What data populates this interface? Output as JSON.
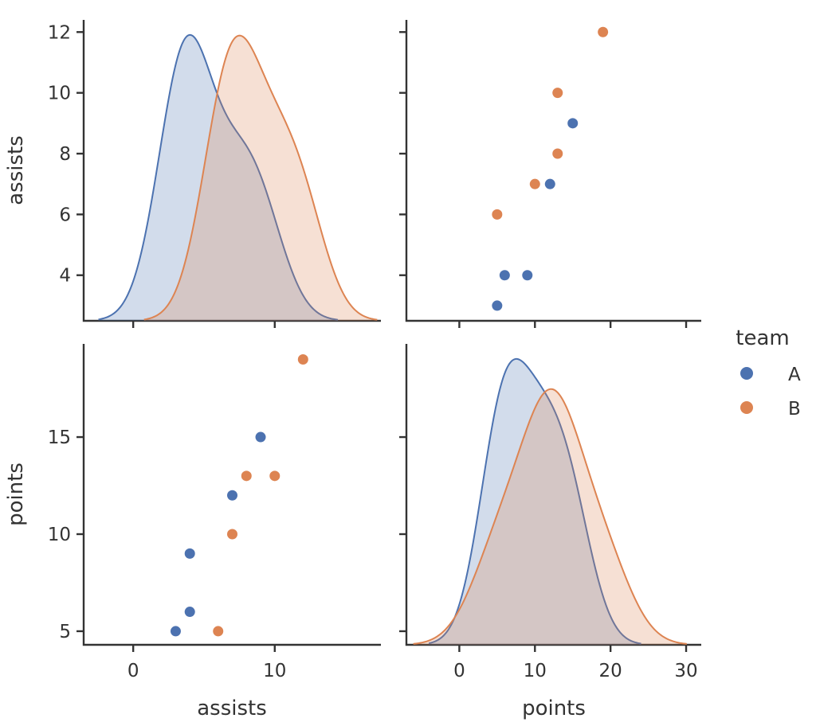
{
  "chart_data": {
    "type": "pairplot",
    "variables": [
      "assists",
      "points"
    ],
    "hue": {
      "title": "team",
      "levels": [
        {
          "name": "A",
          "color": "#4c72b0"
        },
        {
          "name": "B",
          "color": "#dd8452"
        }
      ]
    },
    "observations": [
      {
        "team": "A",
        "assists": 3,
        "points": 5
      },
      {
        "team": "A",
        "assists": 4,
        "points": 6
      },
      {
        "team": "A",
        "assists": 4,
        "points": 9
      },
      {
        "team": "A",
        "assists": 7,
        "points": 12
      },
      {
        "team": "A",
        "assists": 9,
        "points": 15
      },
      {
        "team": "B",
        "assists": 6,
        "points": 5
      },
      {
        "team": "B",
        "assists": 7,
        "points": 10
      },
      {
        "team": "B",
        "assists": 8,
        "points": 13
      },
      {
        "team": "B",
        "assists": 10,
        "points": 13
      },
      {
        "team": "B",
        "assists": 12,
        "points": 19
      }
    ],
    "axes": {
      "assists": {
        "label": "assists",
        "range": [
          -3.5,
          17.5
        ],
        "ticks": [
          0,
          10
        ],
        "tick_labels": [
          "0",
          "10"
        ],
        "scatter_range": [
          2.5,
          12.4
        ],
        "scatter_ticks": [
          4,
          6,
          8,
          10,
          12
        ],
        "scatter_tick_labels": [
          "4",
          "6",
          "8",
          "10",
          "12"
        ]
      },
      "points": {
        "label": "points",
        "range": [
          -7,
          32
        ],
        "ticks": [
          0,
          10,
          20,
          30
        ],
        "tick_labels": [
          "0",
          "10",
          "20",
          "30"
        ],
        "scatter_range": [
          4.3,
          19.8
        ],
        "scatter_ticks": [
          5,
          10,
          15
        ],
        "scatter_tick_labels": [
          "5",
          "10",
          "15"
        ]
      }
    },
    "diagonal": "kde",
    "offdiagonal": "scatter",
    "legend_position": "right"
  }
}
